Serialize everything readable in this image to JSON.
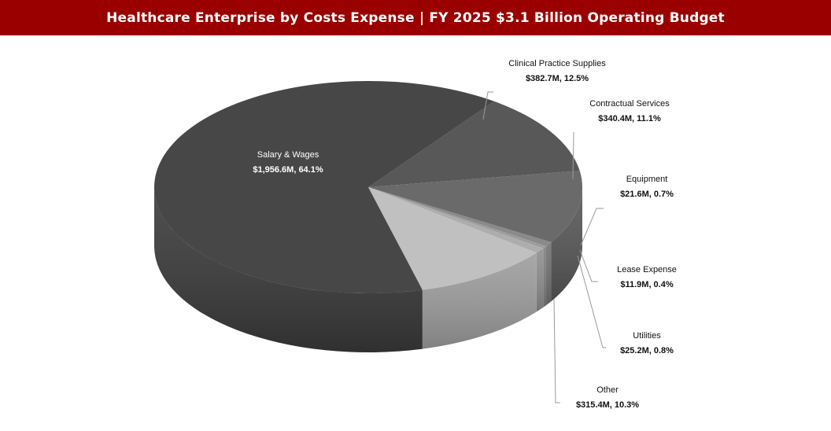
{
  "header": {
    "title": "Healthcare Enterprise by Costs Expense | FY 2025 $3.1 Billion Operating Budget"
  },
  "colors": {
    "title_bar": "#9a0000",
    "title_text": "#ffffff"
  },
  "chart_data": {
    "type": "pie",
    "title": "Healthcare Enterprise by Costs Expense | FY 2025 $3.1 Billion Operating Budget",
    "style": "3d",
    "legend": "none",
    "slices": [
      {
        "name": "Clinical Practice Supplies",
        "value": 382.7,
        "percent": 12.5,
        "label": "$382.7M, 12.5%",
        "color": "#585858"
      },
      {
        "name": "Contractual Services",
        "value": 340.4,
        "percent": 11.1,
        "label": "$340.4M, 11.1%",
        "color": "#6a6a6a"
      },
      {
        "name": "Equipment",
        "value": 21.6,
        "percent": 0.7,
        "label": "$21.6M, 0.7%",
        "color": "#8a8a8a"
      },
      {
        "name": "Lease Expense",
        "value": 11.9,
        "percent": 0.4,
        "label": "$11.9M, 0.4%",
        "color": "#9c9c9c"
      },
      {
        "name": "Utilities",
        "value": 25.2,
        "percent": 0.8,
        "label": "$25.2M, 0.8%",
        "color": "#adadad"
      },
      {
        "name": "Other",
        "value": 315.4,
        "percent": 10.3,
        "label": "$315.4M, 10.3%",
        "color": "#c0c0c0"
      },
      {
        "name": "Salary & Wages",
        "value": 1956.6,
        "percent": 64.1,
        "label": "$1,956.6M, 64.1%",
        "color": "#474747"
      }
    ]
  }
}
